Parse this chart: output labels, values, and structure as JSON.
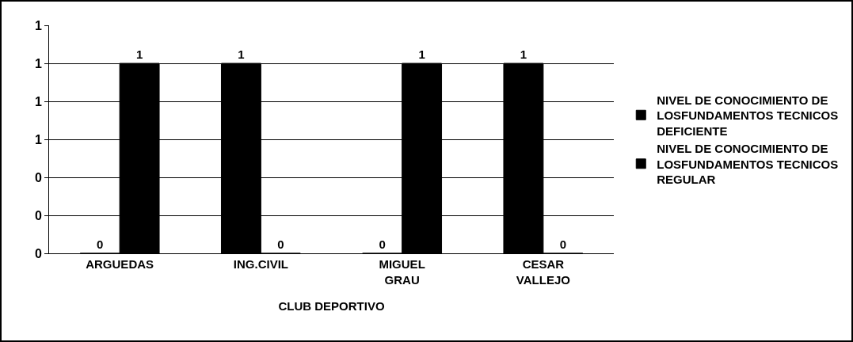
{
  "chart_data": {
    "type": "bar",
    "xlabel": "CLUB DEPORTIVO",
    "categories": [
      "ARGUEDAS",
      "ING.CIVIL",
      "MIGUEL GRAU",
      "CESAR VALLEJO"
    ],
    "series": [
      {
        "name": "NIVEL DE CONOCIMIENTO DE LOSFUNDAMENTOS TECNICOS DEFICIENTE",
        "color": "#000000",
        "values": [
          0,
          1,
          0,
          1
        ]
      },
      {
        "name": "NIVEL DE CONOCIMIENTO DE LOSFUNDAMENTOS TECNICOS REGULAR",
        "color": "#000000",
        "values": [
          1,
          0,
          1,
          0
        ]
      }
    ],
    "ylim": [
      0,
      1.2
    ],
    "yticks": [
      0,
      {
        "value": 0.2,
        "label": "0"
      },
      {
        "value": 0.4,
        "label": "0"
      },
      {
        "value": 0.6,
        "label": "1"
      },
      {
        "value": 0.8,
        "label": "1"
      },
      {
        "value": 1,
        "label": "1"
      },
      {
        "value": 1.2,
        "label": "1"
      }
    ],
    "data_labels": true,
    "grid": "y",
    "legend": "right"
  }
}
